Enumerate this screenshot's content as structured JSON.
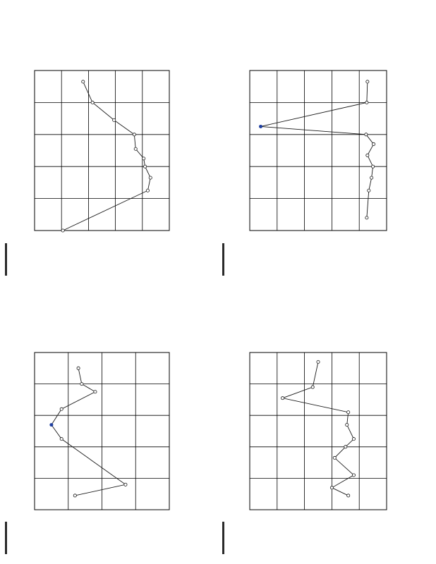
{
  "page": {
    "orientation": "rotated",
    "colors": {
      "line": "#1a1a1a",
      "grid": "#000000",
      "marker_fill": "#ffffff",
      "highlight": "#1f3fa0"
    }
  },
  "chart_data": [
    {
      "type": "line",
      "title": "",
      "xlabel": "",
      "ylabel": "",
      "categories": [
        "",
        "",
        "",
        "",
        "",
        "",
        "",
        "",
        "",
        ""
      ],
      "x": [
        0.35,
        1.0,
        1.55,
        2.0,
        2.45,
        2.75,
        3.0,
        3.35,
        3.75,
        5.0
      ],
      "values": [
        1.2,
        0.85,
        0.05,
        -0.7,
        -0.75,
        -1.05,
        -1.1,
        -1.3,
        -1.2,
        1.95
      ],
      "xlim": [
        0,
        5
      ],
      "ylim": [
        -2,
        3
      ],
      "y_ticks": [
        -2,
        -1,
        0,
        1,
        2,
        3
      ],
      "grid": true,
      "legend": "none"
    },
    {
      "type": "line",
      "title": "",
      "xlabel": "",
      "ylabel": "",
      "categories": [
        "",
        "",
        "",
        "",
        "",
        "",
        "",
        "",
        "",
        ""
      ],
      "x": [
        0.35,
        1.0,
        1.75,
        2.0,
        2.3,
        2.65,
        3.0,
        3.35,
        3.75,
        4.6
      ],
      "values": [
        -0.6,
        -0.55,
        7.2,
        -0.5,
        -1.05,
        -0.6,
        -1.0,
        -0.9,
        -0.7,
        -0.55
      ],
      "xlim": [
        0,
        5
      ],
      "ylim": [
        -2,
        8
      ],
      "y_ticks": [
        -2,
        0,
        2,
        4,
        6,
        8
      ],
      "grid": true,
      "legend": "none"
    },
    {
      "type": "line",
      "title": "",
      "xlabel": "",
      "ylabel": "",
      "categories": [
        "",
        "",
        "",
        "",
        "",
        "",
        "",
        ""
      ],
      "x": [
        0.5,
        1.0,
        1.25,
        1.8,
        2.3,
        2.75,
        4.2,
        4.55
      ],
      "values": [
        3.35,
        3.3,
        3.1,
        3.6,
        3.75,
        3.6,
        2.65,
        3.4
      ],
      "xlim": [
        0,
        5
      ],
      "ylim": [
        2,
        4
      ],
      "y_ticks": [
        2,
        2.5,
        3,
        3.5,
        4
      ],
      "grid": true,
      "legend": "none"
    },
    {
      "type": "line",
      "title": "",
      "xlabel": "",
      "ylabel": "",
      "categories": [
        "",
        "",
        "",
        "",
        "",
        "",
        "",
        "",
        "",
        "",
        ""
      ],
      "x": [
        0.3,
        1.1,
        1.45,
        1.9,
        2.3,
        2.75,
        3.0,
        3.35,
        3.9,
        4.3,
        4.55
      ],
      "values": [
        0.5,
        0.7,
        1.8,
        -0.6,
        -0.55,
        -0.8,
        -0.5,
        -0.1,
        -0.8,
        0.0,
        -0.6
      ],
      "xlim": [
        0,
        5
      ],
      "ylim": [
        -2,
        3
      ],
      "y_ticks": [
        -2,
        -1,
        0,
        1,
        2,
        3
      ],
      "grid": true,
      "legend": "none"
    }
  ]
}
